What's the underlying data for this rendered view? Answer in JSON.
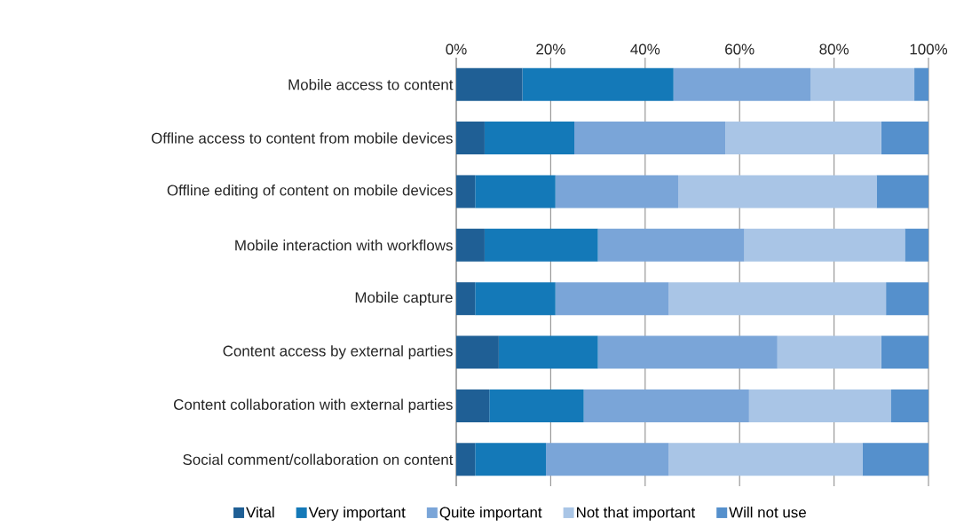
{
  "chart_data": {
    "type": "bar",
    "orientation": "horizontal",
    "stacked": true,
    "categories": [
      "Mobile access to content",
      "Offline access to content from mobile devices",
      "Offline editing of content on mobile devices",
      "Mobile interaction with workflows",
      "Mobile capture",
      "Content access by external parties",
      "Content collaboration with external parties",
      "Social comment/collaboration on content"
    ],
    "series": [
      {
        "name": "Vital",
        "color": "#1f5f95",
        "values": [
          14,
          6,
          4,
          6,
          4,
          9,
          7,
          4
        ]
      },
      {
        "name": "Very important",
        "color": "#1479b8",
        "values": [
          32,
          19,
          17,
          24,
          17,
          21,
          20,
          15
        ]
      },
      {
        "name": "Quite important",
        "color": "#7aa5d8",
        "values": [
          29,
          32,
          26,
          31,
          24,
          38,
          35,
          26
        ]
      },
      {
        "name": "Not that important",
        "color": "#a9c5e6",
        "values": [
          22,
          33,
          42,
          34,
          46,
          22,
          30,
          41
        ]
      },
      {
        "name": "Will not use",
        "color": "#5590cc",
        "values": [
          3,
          10,
          11,
          5,
          9,
          10,
          8,
          14
        ]
      }
    ],
    "xlim": [
      0,
      100
    ],
    "xticks": [
      {
        "value": 0,
        "label": "0%"
      },
      {
        "value": 20,
        "label": "20%"
      },
      {
        "value": 40,
        "label": "40%"
      },
      {
        "value": 60,
        "label": "60%"
      },
      {
        "value": 80,
        "label": "80%"
      },
      {
        "value": 100,
        "label": "100%"
      }
    ],
    "grid": "x",
    "legend": "bottom"
  }
}
